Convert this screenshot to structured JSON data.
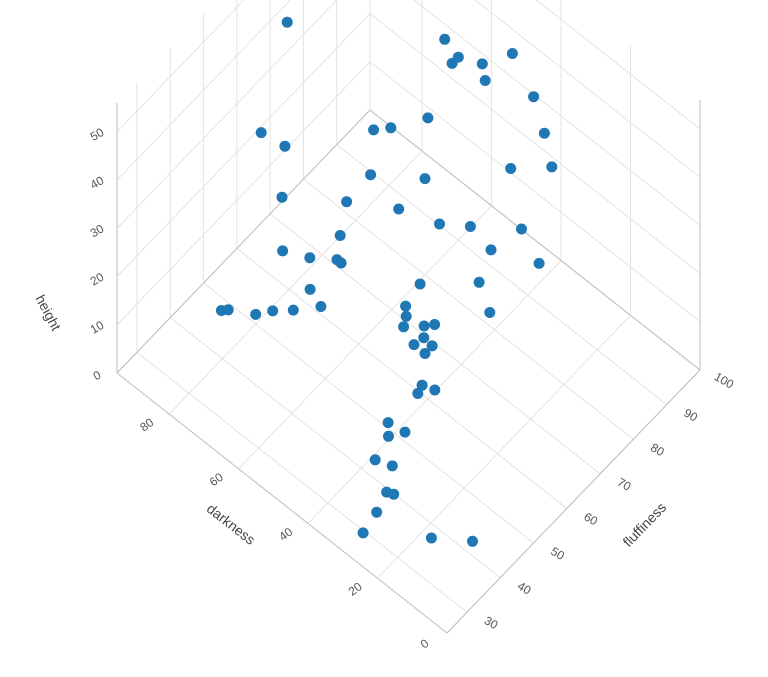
{
  "chart_data": {
    "type": "scatter",
    "title": "",
    "axes": {
      "x": {
        "label": "darkness",
        "ticks": [
          "0",
          "20",
          "40",
          "60",
          "80"
        ],
        "tick_values": [
          0,
          20,
          40,
          60,
          80
        ],
        "range": [
          0,
          95
        ]
      },
      "y": {
        "label": "fluffiness",
        "ticks": [
          "30",
          "40",
          "50",
          "60",
          "70",
          "80",
          "90",
          "100"
        ],
        "tick_values": [
          30,
          40,
          50,
          60,
          70,
          80,
          90,
          100
        ],
        "range": [
          24,
          100
        ]
      },
      "z": {
        "label": "height",
        "ticks": [
          "0",
          "10",
          "20",
          "30",
          "40",
          "50"
        ],
        "tick_values": [
          0,
          10,
          20,
          30,
          40,
          50
        ],
        "range": [
          0,
          56
        ]
      }
    },
    "marker_color": "#1f77b4",
    "grid": true,
    "legend": "none",
    "series": [
      {
        "points": [
          [
            8,
            40,
            3
          ],
          [
            16,
            36,
            2
          ],
          [
            26,
            33,
            8
          ],
          [
            28,
            28,
            2
          ],
          [
            26,
            30,
            6
          ],
          [
            23,
            32,
            10
          ],
          [
            36,
            40,
            4
          ],
          [
            33,
            42,
            3
          ],
          [
            36,
            44,
            6
          ],
          [
            39,
            47,
            5
          ],
          [
            34,
            52,
            12
          ],
          [
            34,
            55,
            18
          ],
          [
            37,
            56,
            14
          ],
          [
            37,
            50,
            2
          ],
          [
            38,
            60,
            3
          ],
          [
            41,
            58,
            2
          ],
          [
            44,
            60,
            9
          ],
          [
            47,
            60,
            11
          ],
          [
            40,
            62,
            14
          ],
          [
            45,
            64,
            7
          ],
          [
            43,
            62,
            12
          ],
          [
            52,
            66,
            6
          ],
          [
            48,
            66,
            15
          ],
          [
            56,
            70,
            3
          ],
          [
            26,
            64,
            23
          ],
          [
            31,
            66,
            25
          ],
          [
            45,
            78,
            20
          ],
          [
            41,
            80,
            16
          ],
          [
            31,
            84,
            16
          ],
          [
            37,
            85,
            19
          ],
          [
            43,
            88,
            26
          ],
          [
            35,
            92,
            28
          ],
          [
            40,
            95,
            30
          ],
          [
            46,
            98,
            32
          ],
          [
            54,
            100,
            35
          ],
          [
            58,
            96,
            30
          ],
          [
            60,
            80,
            20
          ],
          [
            52,
            76,
            18
          ],
          [
            63,
            84,
            28
          ],
          [
            58,
            70,
            22
          ],
          [
            65,
            60,
            14
          ],
          [
            66,
            55,
            8
          ],
          [
            72,
            58,
            6
          ],
          [
            73,
            54,
            4
          ],
          [
            77,
            52,
            3
          ],
          [
            80,
            50,
            2
          ],
          [
            86,
            48,
            1
          ],
          [
            87,
            47,
            1
          ],
          [
            70,
            64,
            9
          ],
          [
            74,
            60,
            10
          ],
          [
            71,
            66,
            12
          ],
          [
            73,
            70,
            15
          ],
          [
            68,
            72,
            22
          ],
          [
            78,
            56,
            12
          ],
          [
            82,
            60,
            18
          ],
          [
            85,
            64,
            24
          ],
          [
            88,
            60,
            28
          ],
          [
            66,
            76,
            30
          ],
          [
            70,
            75,
            28
          ],
          [
            60,
            90,
            38
          ],
          [
            55,
            92,
            38
          ],
          [
            57,
            85,
            42
          ],
          [
            62,
            88,
            42
          ],
          [
            67,
            92,
            46
          ],
          [
            72,
            88,
            50
          ],
          [
            79,
            86,
            52
          ],
          [
            74,
            92,
            48
          ],
          [
            80,
            96,
            52
          ],
          [
            92,
            72,
            40
          ],
          [
            85,
            84,
            47
          ],
          [
            70,
            96,
            55
          ],
          [
            76,
            98,
            55
          ]
        ]
      }
    ]
  }
}
